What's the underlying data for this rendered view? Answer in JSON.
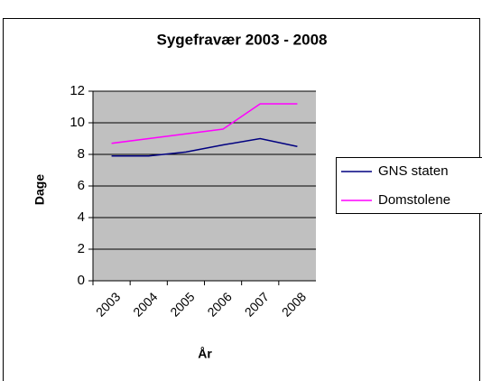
{
  "chart_data": {
    "type": "line",
    "title": "Sygefravær 2003 - 2008",
    "x_label": "År",
    "y_label": "Dage",
    "categories": [
      "2003",
      "2004",
      "2005",
      "2006",
      "2007",
      "2008"
    ],
    "series": [
      {
        "name": "GNS staten",
        "color": "#000080",
        "values": [
          7.9,
          7.9,
          8.15,
          8.6,
          9.0,
          8.5
        ]
      },
      {
        "name": "Domstolene",
        "color": "#ff00ff",
        "values": [
          8.7,
          9.0,
          9.3,
          9.6,
          11.2,
          11.2
        ]
      }
    ],
    "ylim": [
      0,
      12
    ],
    "yticks": [
      0,
      2,
      4,
      6,
      8,
      10,
      12
    ],
    "grid": true,
    "legend": "right"
  }
}
